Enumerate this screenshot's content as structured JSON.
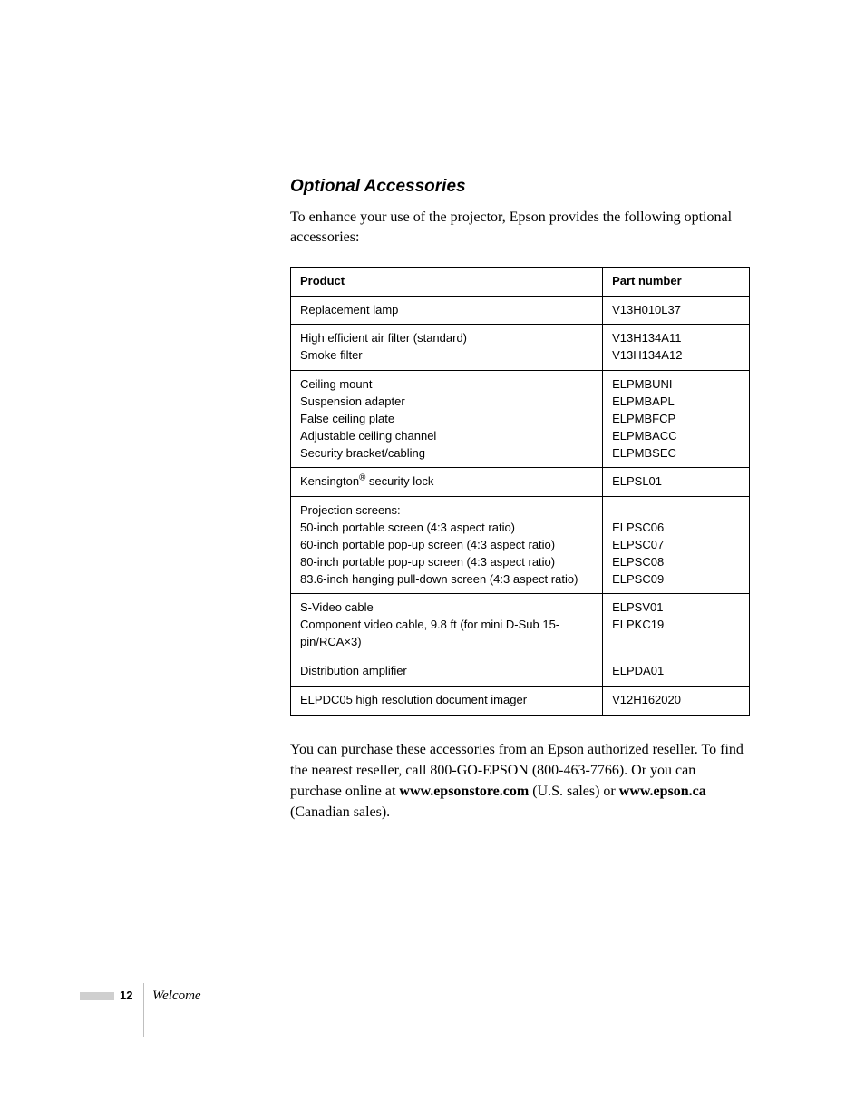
{
  "section_title": "Optional Accessories",
  "intro_text": "To enhance your use of the projector, Epson provides the following optional accessories:",
  "table": {
    "columns": [
      "Product",
      "Part number"
    ],
    "rows": [
      {
        "product_lines": [
          "Replacement lamp"
        ],
        "part_lines": [
          "V13H010L37"
        ]
      },
      {
        "product_lines": [
          "High efficient air filter (standard)",
          "Smoke filter"
        ],
        "part_lines": [
          "V13H134A11",
          "V13H134A12"
        ]
      },
      {
        "product_lines": [
          "Ceiling mount",
          "Suspension adapter",
          "False ceiling plate",
          "Adjustable ceiling channel",
          "Security bracket/cabling"
        ],
        "part_lines": [
          "ELPMBUNI",
          "ELPMBAPL",
          "ELPMBFCP",
          "ELPMBACC",
          "ELPMBSEC"
        ]
      },
      {
        "product_html": "Kensington<span class=\"sup\">®</span> security lock",
        "part_lines": [
          "ELPSL01"
        ]
      },
      {
        "product_lines": [
          "Projection screens:",
          "50-inch portable screen (4:3 aspect ratio)",
          "60-inch portable pop-up screen (4:3 aspect ratio)",
          "80-inch portable pop-up screen (4:3 aspect ratio)",
          "83.6-inch hanging pull-down screen (4:3 aspect ratio)"
        ],
        "part_lines": [
          "",
          "ELPSC06",
          "ELPSC07",
          "ELPSC08",
          "ELPSC09"
        ]
      },
      {
        "product_lines": [
          "S-Video cable",
          "Component video cable, 9.8 ft (for mini D-Sub 15-pin/RCA×3)"
        ],
        "part_lines": [
          "ELPSV01",
          "ELPKC19"
        ]
      },
      {
        "product_lines": [
          "Distribution amplifier"
        ],
        "part_lines": [
          "ELPDA01"
        ]
      },
      {
        "product_lines": [
          "ELPDC05 high resolution document imager"
        ],
        "part_lines": [
          "V12H162020"
        ]
      }
    ]
  },
  "outro": {
    "pre": "You can purchase these accessories from an Epson authorized reseller. To find the nearest reseller, call 800-GO-EPSON (800-463-7766). Or you can purchase online at ",
    "link1": "www.epsonstore.com",
    "mid": " (U.S. sales) or ",
    "link2": "www.epson.ca",
    "post": " (Canadian sales)."
  },
  "footer": {
    "page_number": "12",
    "section": "Welcome"
  },
  "styles": {
    "page_bg": "#ffffff",
    "text_color": "#000000",
    "title_fontsize": 19,
    "body_serif_fontsize": 16,
    "table_fontsize": 13,
    "footer_bar_color": "#cfcfcf",
    "footer_rule_color": "#bfbfbf"
  }
}
